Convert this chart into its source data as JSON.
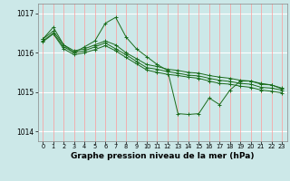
{
  "xlabel": "Graphe pression niveau de la mer (hPa)",
  "bg_color": "#cce8e8",
  "grid_color_h": "#ffffff",
  "grid_color_v": "#ff9999",
  "line_color": "#1a6b1a",
  "xlim": [
    -0.5,
    23.5
  ],
  "ylim": [
    1013.75,
    1017.25
  ],
  "yticks": [
    1014,
    1015,
    1016,
    1017
  ],
  "xticks": [
    0,
    1,
    2,
    3,
    4,
    5,
    6,
    7,
    8,
    9,
    10,
    11,
    12,
    13,
    14,
    15,
    16,
    17,
    18,
    19,
    20,
    21,
    22,
    23
  ],
  "lines": [
    {
      "x": [
        0,
        1,
        2,
        3,
        4,
        5,
        6,
        7,
        8,
        9,
        10,
        11,
        12,
        13,
        14,
        15,
        16,
        17,
        18,
        19,
        20,
        21,
        22,
        23
      ],
      "y": [
        1016.35,
        1016.55,
        1016.2,
        1016.05,
        1016.1,
        1016.2,
        1016.3,
        1016.2,
        1016.0,
        1015.85,
        1015.7,
        1015.65,
        1015.58,
        1015.55,
        1015.5,
        1015.48,
        1015.42,
        1015.38,
        1015.35,
        1015.3,
        1015.28,
        1015.2,
        1015.18,
        1015.1
      ]
    },
    {
      "x": [
        0,
        1,
        2,
        3,
        4,
        5,
        6,
        7,
        8,
        9,
        10,
        11,
        12,
        13,
        14,
        15,
        16,
        17,
        18,
        19,
        20,
        21,
        22,
        23
      ],
      "y": [
        1016.3,
        1016.5,
        1016.15,
        1016.0,
        1016.05,
        1016.15,
        1016.25,
        1016.1,
        1015.95,
        1015.78,
        1015.62,
        1015.58,
        1015.52,
        1015.48,
        1015.43,
        1015.41,
        1015.35,
        1015.3,
        1015.27,
        1015.22,
        1015.2,
        1015.12,
        1015.1,
        1015.05
      ]
    },
    {
      "x": [
        0,
        1,
        2,
        3,
        4,
        5,
        6,
        7,
        8,
        9,
        10,
        11,
        12,
        13,
        14,
        15,
        16,
        17,
        18,
        19,
        20,
        21,
        22,
        23
      ],
      "y": [
        1016.28,
        1016.48,
        1016.1,
        1015.95,
        1016.0,
        1016.08,
        1016.18,
        1016.05,
        1015.88,
        1015.72,
        1015.56,
        1015.5,
        1015.45,
        1015.42,
        1015.38,
        1015.35,
        1015.28,
        1015.22,
        1015.2,
        1015.15,
        1015.12,
        1015.05,
        1015.02,
        1014.98
      ]
    },
    {
      "x": [
        0,
        1,
        2,
        3,
        4,
        5,
        6,
        7,
        8,
        9,
        10,
        11,
        12,
        13,
        14,
        15,
        16,
        17,
        18,
        19,
        20,
        21,
        22,
        23
      ],
      "y": [
        1016.35,
        1016.65,
        1016.2,
        1016.0,
        1016.15,
        1016.3,
        1016.75,
        1016.9,
        1016.4,
        1016.1,
        1015.9,
        1015.7,
        1015.55,
        1014.45,
        1014.43,
        1014.45,
        1014.85,
        1014.68,
        1015.05,
        1015.28,
        1015.28,
        1015.22,
        1015.18,
        1015.08
      ]
    }
  ]
}
